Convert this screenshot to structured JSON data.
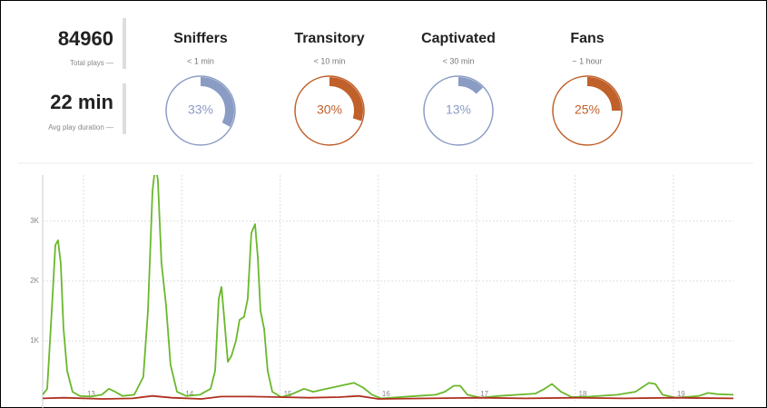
{
  "stats": [
    {
      "value": "84960",
      "label": "Total plays —"
    },
    {
      "value": "22 min",
      "label": "Avg play duration —"
    }
  ],
  "gauges": [
    {
      "title": "Sniffers",
      "subtitle": "< 1 min",
      "percent": {
        "value": 33,
        "label": "33%"
      },
      "color": "#8a9bc4"
    },
    {
      "title": "Transitory",
      "subtitle": "< 10 min",
      "percent": {
        "value": 30,
        "label": "30%"
      },
      "color": "#c0602a"
    },
    {
      "title": "Captivated",
      "subtitle": "< 30 min",
      "percent": {
        "value": 13,
        "label": "13%"
      },
      "color": "#8a9bc4"
    },
    {
      "title": "Fans",
      "subtitle": "~ 1 hour",
      "percent": {
        "value": 25,
        "label": "25%"
      },
      "color": "#c0602a"
    }
  ],
  "chart_data": {
    "type": "line",
    "xlim": [
      12.585,
      19.611
    ],
    "xticks": [
      13,
      14,
      15,
      16,
      17,
      18,
      19
    ],
    "ylim": [
      0,
      3770
    ],
    "yticks": [
      {
        "value": 1000,
        "label": "1K"
      },
      {
        "value": 2000,
        "label": "2K"
      },
      {
        "value": 3000,
        "label": "3K"
      }
    ],
    "grid": true,
    "series": [
      {
        "color": "#6ab82c",
        "x": [
          12.585,
          12.631,
          12.677,
          12.714,
          12.741,
          12.769,
          12.797,
          12.834,
          12.889,
          12.963,
          13.074,
          13.185,
          13.259,
          13.323,
          13.397,
          13.517,
          13.609,
          13.656,
          13.702,
          13.729,
          13.757,
          13.794,
          13.84,
          13.886,
          13.951,
          14.043,
          14.182,
          14.293,
          14.339,
          14.376,
          14.404,
          14.431,
          14.468,
          14.505,
          14.551,
          14.588,
          14.634,
          14.671,
          14.708,
          14.745,
          14.773,
          14.801,
          14.838,
          14.874,
          14.921,
          15.013,
          15.105,
          15.244,
          15.336,
          15.475,
          15.613,
          15.752,
          15.844,
          15.936,
          16.029,
          16.213,
          16.398,
          16.583,
          16.675,
          16.767,
          16.832,
          16.906,
          17.044,
          17.229,
          17.414,
          17.598,
          17.691,
          17.765,
          17.857,
          17.968,
          18.152,
          18.429,
          18.614,
          18.752,
          18.817,
          18.891,
          19.03,
          19.26,
          19.353,
          19.445,
          19.611
        ],
        "values": [
          100,
          200,
          1500,
          2600,
          2680,
          2300,
          1200,
          500,
          150,
          80,
          70,
          100,
          200,
          150,
          80,
          100,
          400,
          1500,
          3500,
          3900,
          3700,
          2300,
          1600,
          600,
          150,
          80,
          100,
          200,
          500,
          1700,
          1900,
          1400,
          650,
          750,
          1000,
          1350,
          1400,
          1700,
          2800,
          2950,
          2400,
          1500,
          1200,
          500,
          150,
          60,
          100,
          200,
          150,
          200,
          250,
          300,
          220,
          100,
          40,
          60,
          80,
          100,
          150,
          250,
          250,
          100,
          50,
          80,
          100,
          120,
          200,
          280,
          150,
          60,
          70,
          100,
          150,
          300,
          280,
          100,
          50,
          80,
          130,
          110,
          100
        ]
      },
      {
        "color": "#b03020",
        "x": [
          12.585,
          12.8,
          13.2,
          13.5,
          13.7,
          13.9,
          14.2,
          14.4,
          14.7,
          15.0,
          15.3,
          15.6,
          15.8,
          16.0,
          16.5,
          17.0,
          17.5,
          18.0,
          18.5,
          19.0,
          19.611
        ],
        "values": [
          40,
          50,
          30,
          40,
          80,
          50,
          30,
          70,
          70,
          60,
          50,
          60,
          80,
          30,
          40,
          50,
          40,
          50,
          40,
          50,
          40
        ]
      }
    ]
  }
}
